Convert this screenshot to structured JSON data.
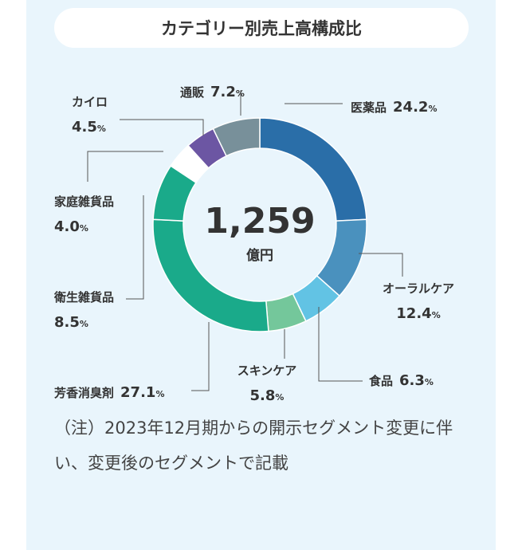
{
  "chart_data": {
    "type": "pie",
    "donut": true,
    "title": "カテゴリー別売上高構成比",
    "center": {
      "value": "1,259",
      "unit": "億円"
    },
    "slices": [
      {
        "name": "医薬品",
        "value": 24.2,
        "label": "24.2",
        "color": "#2a6ea8"
      },
      {
        "name": "オーラルケア",
        "value": 12.4,
        "label": "12.4",
        "color": "#4a91be"
      },
      {
        "name": "食品",
        "value": 6.3,
        "label": "6.3",
        "color": "#62c3e4"
      },
      {
        "name": "スキンケア",
        "value": 5.8,
        "label": "5.8",
        "color": "#74c79b"
      },
      {
        "name": "芳香消臭剤",
        "value": 27.1,
        "label": "27.1",
        "color": "#1aaa8a"
      },
      {
        "name": "衛生雑貨品",
        "value": 8.5,
        "label": "8.5",
        "color": "#1aaa8a"
      },
      {
        "name": "家庭雑貨品",
        "value": 4.0,
        "label": "4.0",
        "color": "#ffffff"
      },
      {
        "name": "カイロ",
        "value": 4.5,
        "label": "4.5",
        "color": "#6c56a3"
      },
      {
        "name": "通販",
        "value": 7.2,
        "label": "7.2",
        "color": "#78909a"
      }
    ],
    "unit_symbol": "%"
  },
  "note": "（注）2023年12月期からの開示セグメント変更に伴い、変更後のセグメントで記載"
}
